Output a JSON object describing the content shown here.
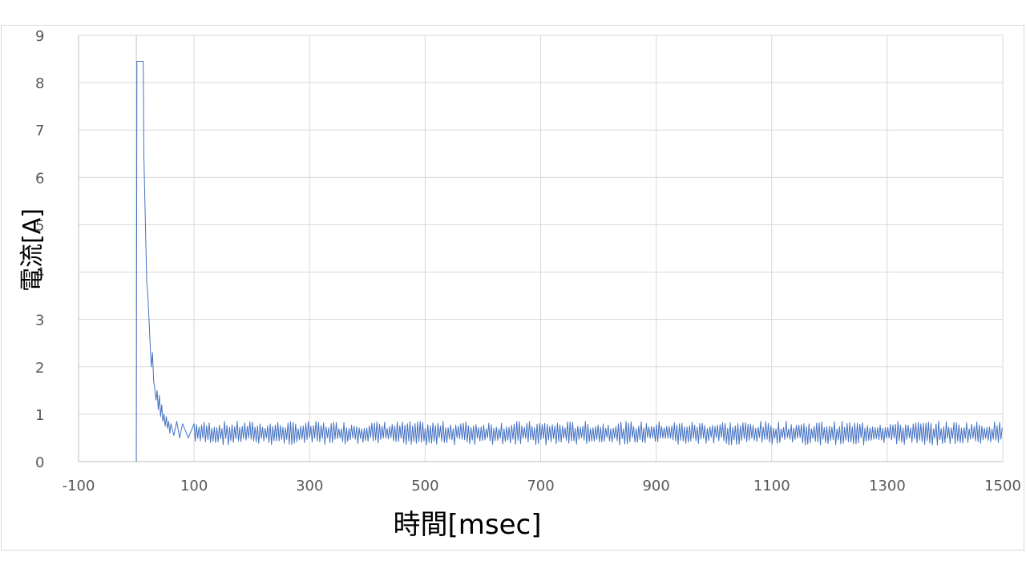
{
  "chart_data": {
    "type": "line",
    "title": "",
    "xlabel": "時間[msec]",
    "ylabel": "電流[A]",
    "xlim": [
      -100,
      1500
    ],
    "ylim": [
      0,
      9
    ],
    "x_ticks": [
      -100,
      100,
      300,
      500,
      700,
      900,
      1100,
      1300,
      1500
    ],
    "y_ticks": [
      0,
      1,
      2,
      3,
      4,
      5,
      6,
      7,
      8,
      9
    ],
    "grid": true,
    "legend": "none",
    "colors": {
      "line": "#4472c4",
      "grid": "#d9d9d9",
      "axis": "#bfbfbf"
    },
    "series": [
      {
        "values_description_free": true,
        "x": [
          0,
          1,
          2,
          12,
          13,
          18,
          20,
          22,
          24,
          26,
          28,
          30,
          32,
          34,
          36,
          38,
          40,
          42,
          44,
          46,
          48,
          50,
          52,
          54,
          56,
          58,
          60,
          65,
          70,
          75,
          80,
          90,
          100
        ],
        "y": [
          0,
          8.45,
          8.45,
          8.45,
          6.5,
          3.8,
          3.5,
          3.0,
          2.45,
          2.0,
          2.3,
          1.7,
          1.55,
          1.3,
          1.5,
          1.1,
          1.4,
          0.95,
          1.2,
          0.85,
          1.0,
          0.75,
          0.95,
          0.7,
          0.85,
          0.6,
          0.8,
          0.55,
          0.85,
          0.5,
          0.8,
          0.5,
          0.8
        ],
        "steady_mean": 0.6,
        "steady_amplitude": 0.18,
        "steady_range_x": [
          100,
          1500
        ]
      }
    ]
  }
}
